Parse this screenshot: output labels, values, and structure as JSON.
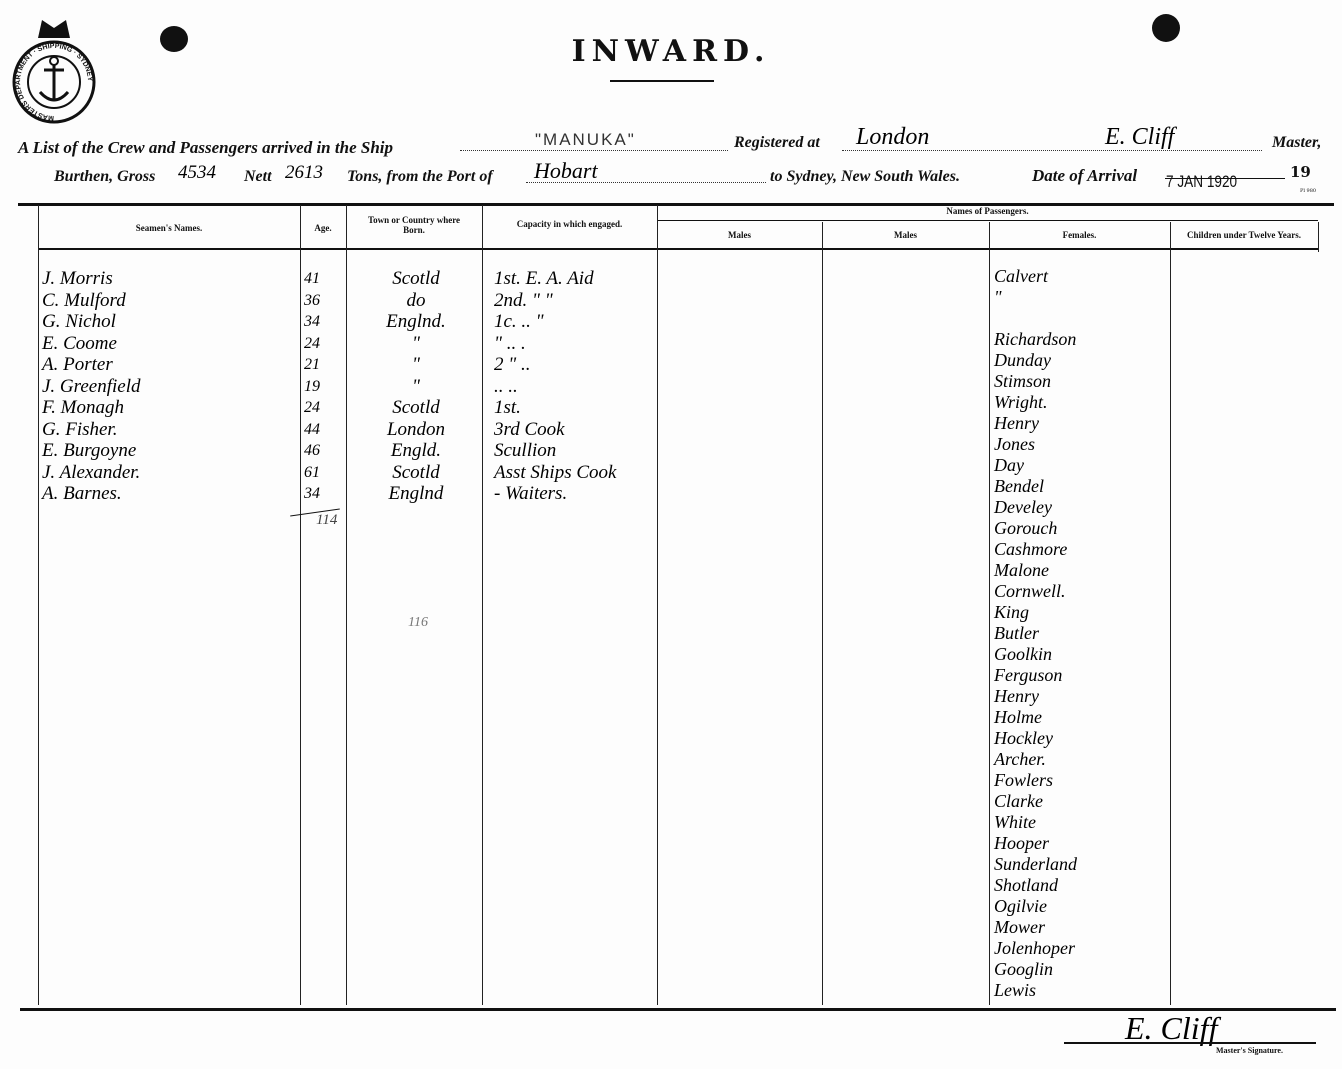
{
  "header": {
    "title": "INWARD.",
    "crest_text": "MASTERS DEPARTMENT · SHIPPING · SYDNEY",
    "line1_prefix": "A List of the Crew and Passengers arrived in the Ship",
    "ship": "\"MANUKA\"",
    "registered_label": "Registered at",
    "registered_at": "London",
    "master_name": "E. Cliff",
    "master_label": "Master,",
    "burthen_label": "Burthen, Gross",
    "gross": "4534",
    "nett_label": "Nett",
    "nett": "2613",
    "tons_label": "Tons, from the Port of",
    "port": "Hobart",
    "to_sydney": "to Sydney, New South Wales.",
    "arrival_label": "Date of Arrival",
    "arrival_stamp": "7 JAN 1920",
    "year": "19",
    "form_no": "Pl 980"
  },
  "columns": {
    "seamen": "Seamen's Names.",
    "age": "Age.",
    "town": "Town or Country where Born.",
    "capacity": "Capacity in which engaged.",
    "passengers": "Names of Passengers.",
    "males1": "Males",
    "males2": "Males",
    "females": "Females.",
    "children": "Children under Twelve Years."
  },
  "crew": [
    {
      "name": "J. Morris",
      "age": "41",
      "town": "Scotld",
      "capacity": "1st. E. A. Aid"
    },
    {
      "name": "C. Mulford",
      "age": "36",
      "town": "do",
      "capacity": "2nd.  \"  \""
    },
    {
      "name": "G. Nichol",
      "age": "34",
      "town": "Englnd.",
      "capacity": "1c.  ..  \""
    },
    {
      "name": "E. Coome",
      "age": "24",
      "town": "\"",
      "capacity": "\"  ..  ."
    },
    {
      "name": "A. Porter",
      "age": "21",
      "town": "\"",
      "capacity": "2 \"  .."
    },
    {
      "name": "J. Greenfield",
      "age": "19",
      "town": "\"",
      "capacity": "..  .."
    },
    {
      "name": "F. Monagh",
      "age": "24",
      "town": "Scotld",
      "capacity": "1st."
    },
    {
      "name": "G. Fisher.",
      "age": "44",
      "town": "London",
      "capacity": "3rd Cook"
    },
    {
      "name": "E. Burgoyne",
      "age": "46",
      "town": "Engld.",
      "capacity": "Scullion"
    },
    {
      "name": "J. Alexander.",
      "age": "61",
      "town": "Scotld",
      "capacity": "Asst Ships Cook"
    },
    {
      "name": "A. Barnes.",
      "age": "34",
      "town": "Englnd",
      "capacity": "- Waiters."
    }
  ],
  "age_total": "114",
  "margin_note": "116",
  "females": [
    "Calvert",
    "\"",
    "",
    "Richardson",
    "Dunday",
    "Stimson",
    "Wright.",
    "Henry",
    "Jones",
    "Day",
    "Bendel",
    "Develey",
    "Gorouch",
    "Cashmore",
    "Malone",
    "Cornwell.",
    "King",
    "Butler",
    "Goolkin",
    "Ferguson",
    "Henry",
    "Holme",
    "Hockley",
    "Archer.",
    "Fowlers",
    "Clarke",
    "White",
    "Hooper",
    "Sunderland",
    "Shotland",
    "Ogilvie",
    "Mower",
    "Jolenhoper",
    "Googlin",
    "Lewis"
  ],
  "footer": {
    "signature": "E. Cliff",
    "signature_label": "Master's Signature."
  }
}
